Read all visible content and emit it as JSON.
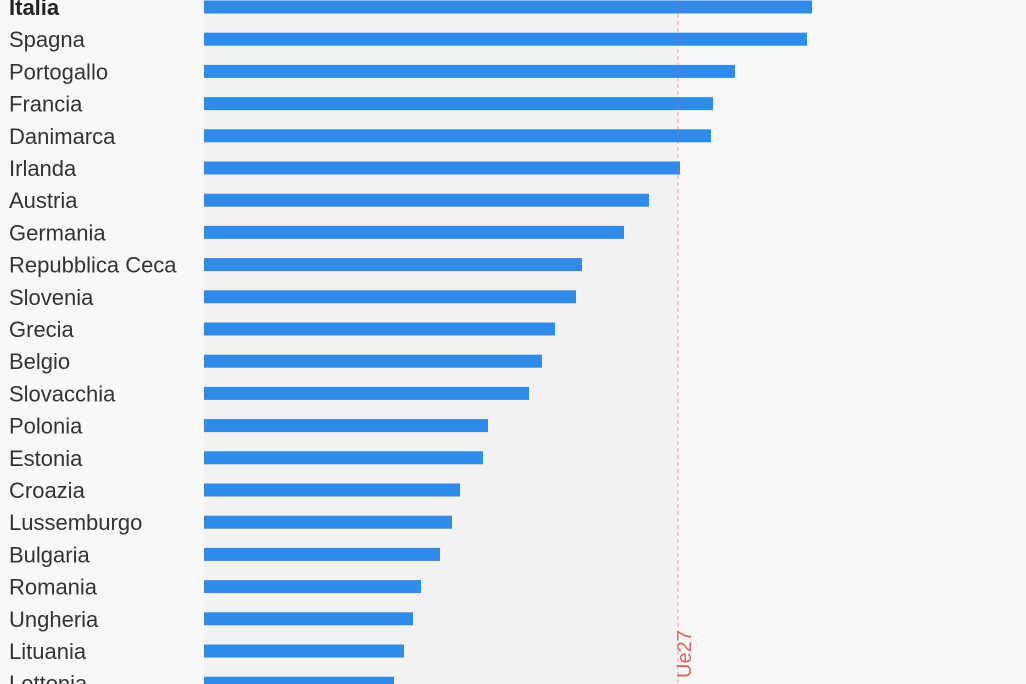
{
  "chart_data": {
    "type": "bar",
    "orientation": "horizontal",
    "title": "",
    "xlabel": "",
    "ylabel": "",
    "categories": [
      "Italia",
      "Spagna",
      "Portogallo",
      "Francia",
      "Danimarca",
      "Irlanda",
      "Austria",
      "Germania",
      "Repubblica Ceca",
      "Slovenia",
      "Grecia",
      "Belgio",
      "Slovacchia",
      "Polonia",
      "Estonia",
      "Croazia",
      "Lussemburgo",
      "Bulgaria",
      "Romania",
      "Ungheria",
      "Lituania",
      "Lettonia"
    ],
    "values": [
      608,
      603,
      531,
      509,
      507,
      476,
      445,
      420,
      378,
      372,
      351,
      338,
      325,
      284,
      279,
      256,
      248,
      236,
      217,
      209,
      200,
      190
    ],
    "highlight": "Italia",
    "xlim": [
      0,
      822
    ],
    "grid": false,
    "reference_line": {
      "label": "Ue27",
      "value": 474
    },
    "colors": {
      "bar": "#2f8ae8",
      "panel": "#f2f2f3",
      "background": "#f8f8f8",
      "reference": "#e06060",
      "label": "#333333"
    }
  }
}
